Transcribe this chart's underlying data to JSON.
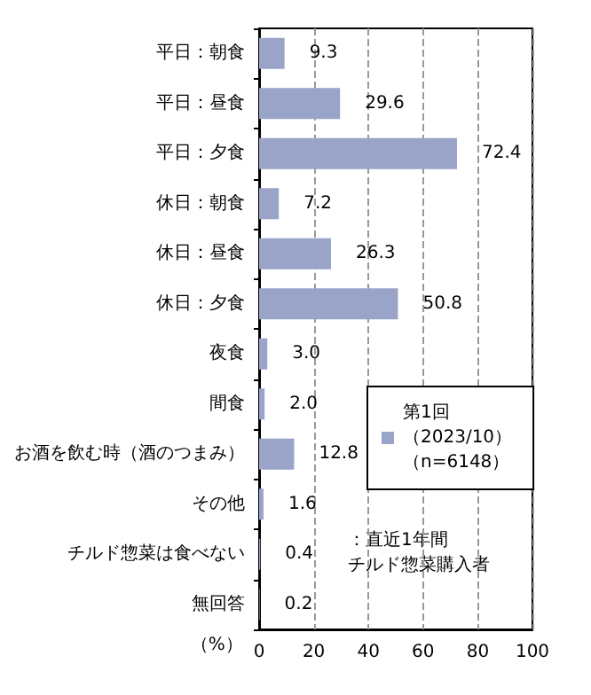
{
  "chart_data": {
    "type": "bar",
    "orientation": "horizontal",
    "categories": [
      "平日：朝食",
      "平日：昼食",
      "平日：夕食",
      "休日：朝食",
      "休日：昼食",
      "休日：夕食",
      "夜食",
      "間食",
      "お酒を飲む時（酒のつまみ）",
      "その他",
      "チルド惣菜は食べない",
      "無回答"
    ],
    "series": [
      {
        "name": "第1回（2023/10）（n=6148）",
        "color": "#9aa3c8",
        "values": [
          9.3,
          29.6,
          72.4,
          7.2,
          26.3,
          50.8,
          3.0,
          2.0,
          12.8,
          1.6,
          0.4,
          0.2
        ],
        "value_labels": [
          "9.3",
          "29.6",
          "72.4",
          "7.2",
          "26.3",
          "50.8",
          "3.0",
          "2.0",
          "12.8",
          "1.6",
          "0.4",
          "0.2"
        ]
      }
    ],
    "xlabel": "（%）",
    "xlim": [
      0,
      100
    ],
    "xticks": [
      0,
      20,
      40,
      60,
      80,
      100
    ],
    "grid": "x",
    "legend": "right",
    "annotations": [
      "：直近1年間チルド惣菜購入者"
    ]
  }
}
